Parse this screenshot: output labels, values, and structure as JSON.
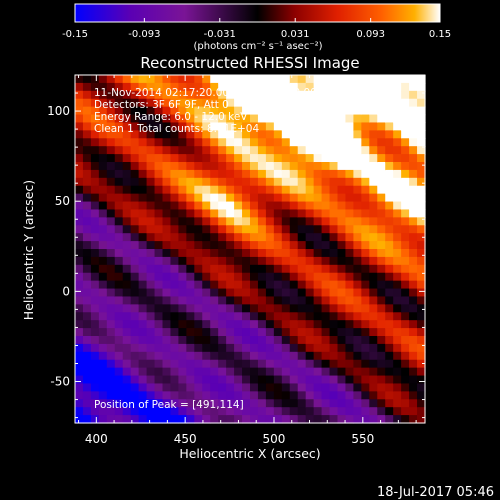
{
  "chart_data": {
    "type": "heatmap",
    "title": "Reconstructed RHESSI Image",
    "xlabel": "Heliocentric X (arcsec)",
    "ylabel": "Heliocentric Y (arcsec)",
    "xlim": [
      388,
      585
    ],
    "ylim": [
      -73,
      120
    ],
    "x_ticks": [
      400,
      450,
      500,
      550
    ],
    "y_ticks": [
      -50,
      0,
      50,
      100
    ],
    "colorbar": {
      "min": -0.15,
      "max": 0.15,
      "ticks": [
        -0.15,
        -0.093,
        -0.031,
        0.031,
        0.093,
        0.15
      ],
      "tick_labels": [
        "-0.15",
        "-0.093",
        "-0.031",
        "0.031",
        "0.093",
        "0.15"
      ],
      "label": "(photons cm⁻² s⁻¹ asec⁻²)",
      "colormap": [
        "#0000ff",
        "#5a00b4",
        "#7a1496",
        "#000000",
        "#8b0000",
        "#e02000",
        "#ff6000",
        "#ffb000",
        "#ffffff"
      ]
    },
    "annotations": [
      "11-Nov-2014 02:17:20.000 to 02:27:20.000",
      "Detectors: 3F 6F 9F, Att 0",
      "Energy Range: 6.0 - 12.0 keV",
      "Clean 1 Total counts: 8.41E+04"
    ],
    "peak_label": "Position of Peak = [491,114]",
    "peak_position": [
      491,
      114
    ],
    "stripe_orientation_deg": -35,
    "bright_regions": [
      {
        "x": 475,
        "y": 55,
        "value": 0.15
      },
      {
        "x": 525,
        "y": 95,
        "value": 0.15
      },
      {
        "x": 491,
        "y": 114,
        "value": 0.15
      }
    ]
  },
  "footer": {
    "timestamp": "18-Jul-2017 05:46"
  }
}
